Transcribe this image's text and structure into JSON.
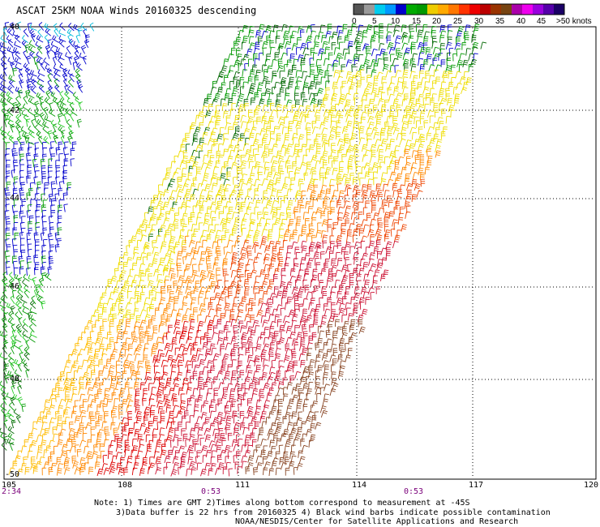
{
  "title": "ASCAT 25KM NOAA Winds 20160325 descending",
  "legend": {
    "ticks": [
      "0",
      "5",
      "10",
      "15",
      "20",
      "25",
      "30",
      "35",
      "40",
      "45",
      ">50 knots"
    ],
    "colors": [
      "#555555",
      "#9a9a9a",
      "#00ccee",
      "#0099ff",
      "#0000cc",
      "#00aa00",
      "#009900",
      "#eecc00",
      "#ffaa00",
      "#ff7700",
      "#ff3300",
      "#ee0000",
      "#bb0000",
      "#993300",
      "#774411",
      "#aa00aa",
      "#ee00ee",
      "#9900dd",
      "#5500aa",
      "#1a0066"
    ]
  },
  "map": {
    "lon_labels": [
      "105",
      "108",
      "111",
      "114",
      "117",
      "120"
    ],
    "lat_labels": [
      "-40",
      "-42",
      "-44",
      "-46",
      "-48",
      "-50"
    ],
    "time_labels": [
      "2:34",
      "0:53",
      "0:53"
    ]
  },
  "notes": {
    "line1": "Note: 1) Times are GMT 2)Times along bottom correspond to measurement at -45S",
    "line2": "3)Data buffer is 22 hrs from 20160325 4) Black wind barbs indicate possible contamination",
    "line3": "NOAA/NESDIS/Center for Satellite Applications and Research"
  },
  "barb_colors": {
    "blue": "#0000cc",
    "cyan": "#00bbdd",
    "green": "#009900",
    "lightgreen": "#22cc22",
    "darkgreen": "#006600",
    "yellow": "#eedd00",
    "gold": "#ffbb00",
    "orange": "#ff8800",
    "redorange": "#ee4400",
    "red": "#dd0000",
    "crimson": "#cc1133",
    "brown": "#884422"
  }
}
